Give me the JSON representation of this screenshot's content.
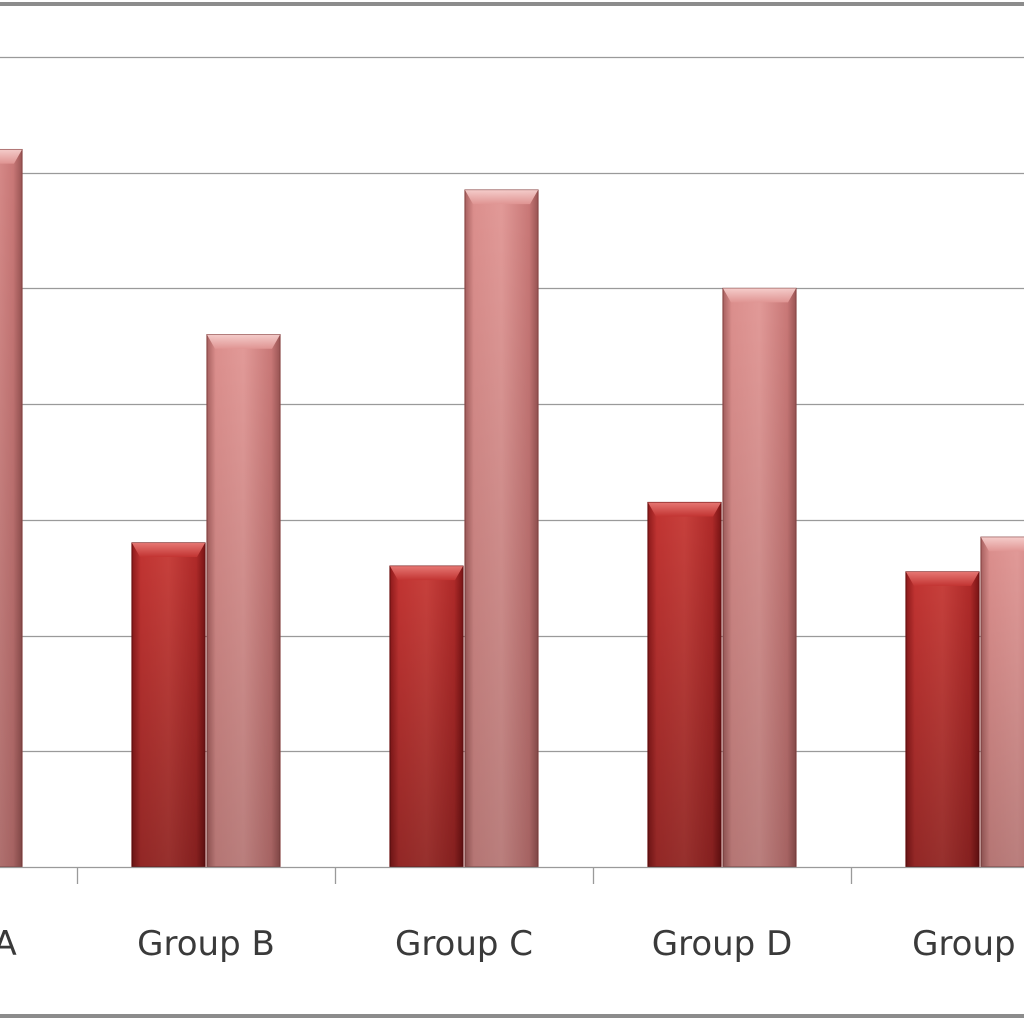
{
  "chart_data": {
    "type": "bar",
    "categories": [
      "Group A",
      "Group B",
      "Group C",
      "Group D",
      "Group E"
    ],
    "series": [
      {
        "values": [
          null,
          28,
          26,
          31.5,
          25.5
        ]
      },
      {
        "values": [
          62,
          46,
          58.5,
          50,
          28.5
        ]
      }
    ],
    "ylim": [
      0,
      70
    ],
    "grid": true,
    "colors": {
      "series_0": "#c0302f",
      "series_1": "#d98a88",
      "gridline": "#9a9a9a",
      "frame": "#8c8c8c",
      "tick_label": "#3a3a3a"
    }
  }
}
